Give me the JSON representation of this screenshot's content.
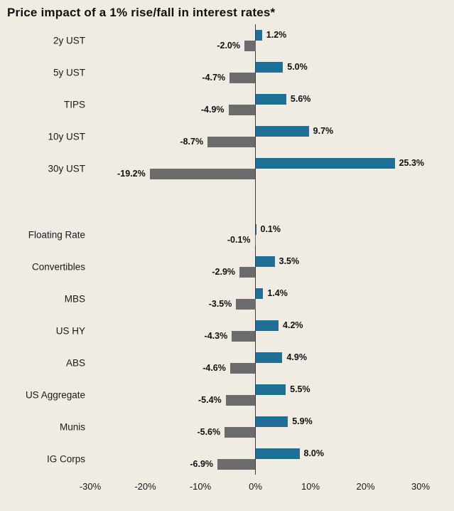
{
  "title": "Price impact of a 1% rise/fall in interest rates*",
  "colors": {
    "background": "#f0ebe3",
    "positive_bar": "#1f6e96",
    "negative_bar": "#6c6c6c",
    "axis_line": "#3d3d3d",
    "text": "#111111"
  },
  "chart_data": {
    "type": "bar",
    "orientation": "horizontal",
    "title": "Price impact of a 1% rise/fall in interest rates*",
    "categories": [
      "2y UST",
      "5y UST",
      "TIPS",
      "10y UST",
      "30y UST",
      "Floating Rate",
      "Convertibles",
      "MBS",
      "US HY",
      "ABS",
      "US Aggregate",
      "Munis",
      "IG Corps"
    ],
    "series": [
      {
        "name": "positive",
        "values": [
          1.2,
          5.0,
          5.6,
          9.7,
          25.3,
          0.1,
          3.5,
          1.4,
          4.2,
          4.9,
          5.5,
          5.9,
          8.0
        ]
      },
      {
        "name": "negative",
        "values": [
          -2.0,
          -4.7,
          -4.9,
          -8.7,
          -19.2,
          -0.1,
          -2.9,
          -3.5,
          -4.3,
          -4.6,
          -5.4,
          -5.6,
          -6.9
        ]
      }
    ],
    "group_gap_before_index": 5,
    "x_ticks": [
      "-30%",
      "-20%",
      "-10%",
      "0%",
      "10%",
      "20%",
      "30%"
    ],
    "xlim": [
      -30,
      30
    ],
    "grid": "off",
    "legend": "none",
    "value_labels": "on"
  }
}
